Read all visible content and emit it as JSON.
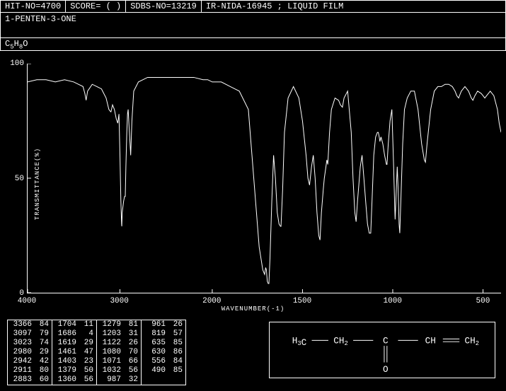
{
  "header": {
    "hit_no": "HIT-NO=4700",
    "score": "SCORE=  (  )",
    "sdbs_no": "SDBS-NO=13219",
    "source": "IR-NIDA-16945 ; LIQUID FILM"
  },
  "compound_name": "1-PENTEN-3-ONE",
  "formula_html": "C<sub>5</sub>H<sub>8</sub>O",
  "chart": {
    "type": "line",
    "title": "",
    "ylabel": "TRANSMITTANCE(%)",
    "xlabel": "WAVENUMBER(-1)",
    "ylim": [
      0,
      100
    ],
    "yticks": [
      0,
      50,
      100
    ],
    "xlim": [
      4000,
      400
    ],
    "xticks": [
      4000,
      3000,
      2000,
      1500,
      1000,
      500
    ],
    "background_color": "#000000",
    "line_color": "#ffffff",
    "axis_color": "#ffffff",
    "line_width": 1,
    "x_scale_breakpoint": 2000,
    "x_scale_left_fraction": 0.39,
    "data": [
      [
        4000,
        92
      ],
      [
        3900,
        93
      ],
      [
        3800,
        93
      ],
      [
        3700,
        92
      ],
      [
        3600,
        93
      ],
      [
        3500,
        92
      ],
      [
        3450,
        91
      ],
      [
        3400,
        90
      ],
      [
        3380,
        87
      ],
      [
        3366,
        84
      ],
      [
        3350,
        88
      ],
      [
        3300,
        91
      ],
      [
        3250,
        90
      ],
      [
        3200,
        89
      ],
      [
        3150,
        85
      ],
      [
        3120,
        80
      ],
      [
        3100,
        79
      ],
      [
        3097,
        79
      ],
      [
        3080,
        82
      ],
      [
        3060,
        80
      ],
      [
        3040,
        76
      ],
      [
        3023,
        74
      ],
      [
        3010,
        78
      ],
      [
        3000,
        60
      ],
      [
        2990,
        40
      ],
      [
        2982,
        30
      ],
      [
        2980,
        29
      ],
      [
        2975,
        35
      ],
      [
        2960,
        40
      ],
      [
        2950,
        42
      ],
      [
        2942,
        42
      ],
      [
        2935,
        55
      ],
      [
        2925,
        70
      ],
      [
        2918,
        78
      ],
      [
        2911,
        80
      ],
      [
        2900,
        72
      ],
      [
        2890,
        65
      ],
      [
        2883,
        60
      ],
      [
        2870,
        75
      ],
      [
        2850,
        88
      ],
      [
        2800,
        92
      ],
      [
        2750,
        93
      ],
      [
        2700,
        94
      ],
      [
        2600,
        94
      ],
      [
        2500,
        94
      ],
      [
        2400,
        94
      ],
      [
        2300,
        94
      ],
      [
        2200,
        94
      ],
      [
        2100,
        93
      ],
      [
        2050,
        93
      ],
      [
        2000,
        92
      ],
      [
        1950,
        92
      ],
      [
        1900,
        90
      ],
      [
        1850,
        88
      ],
      [
        1800,
        80
      ],
      [
        1780,
        60
      ],
      [
        1760,
        40
      ],
      [
        1740,
        20
      ],
      [
        1720,
        10
      ],
      [
        1710,
        8
      ],
      [
        1704,
        11
      ],
      [
        1700,
        10
      ],
      [
        1695,
        5
      ],
      [
        1690,
        4
      ],
      [
        1686,
        4
      ],
      [
        1680,
        15
      ],
      [
        1670,
        40
      ],
      [
        1660,
        60
      ],
      [
        1650,
        50
      ],
      [
        1640,
        35
      ],
      [
        1630,
        30
      ],
      [
        1622,
        29
      ],
      [
        1619,
        29
      ],
      [
        1610,
        45
      ],
      [
        1600,
        70
      ],
      [
        1580,
        85
      ],
      [
        1550,
        90
      ],
      [
        1520,
        85
      ],
      [
        1500,
        75
      ],
      [
        1480,
        60
      ],
      [
        1470,
        50
      ],
      [
        1461,
        47
      ],
      [
        1450,
        55
      ],
      [
        1440,
        60
      ],
      [
        1430,
        50
      ],
      [
        1420,
        35
      ],
      [
        1410,
        25
      ],
      [
        1403,
        23
      ],
      [
        1395,
        35
      ],
      [
        1385,
        45
      ],
      [
        1379,
        50
      ],
      [
        1370,
        55
      ],
      [
        1365,
        58
      ],
      [
        1360,
        56
      ],
      [
        1350,
        70
      ],
      [
        1340,
        80
      ],
      [
        1320,
        85
      ],
      [
        1300,
        84
      ],
      [
        1290,
        82
      ],
      [
        1279,
        81
      ],
      [
        1270,
        85
      ],
      [
        1250,
        88
      ],
      [
        1230,
        70
      ],
      [
        1220,
        50
      ],
      [
        1210,
        35
      ],
      [
        1203,
        31
      ],
      [
        1195,
        40
      ],
      [
        1180,
        55
      ],
      [
        1170,
        60
      ],
      [
        1160,
        50
      ],
      [
        1150,
        40
      ],
      [
        1140,
        30
      ],
      [
        1130,
        26
      ],
      [
        1122,
        26
      ],
      [
        1115,
        40
      ],
      [
        1105,
        60
      ],
      [
        1095,
        68
      ],
      [
        1085,
        70
      ],
      [
        1080,
        70
      ],
      [
        1075,
        68
      ],
      [
        1071,
        66
      ],
      [
        1065,
        68
      ],
      [
        1055,
        65
      ],
      [
        1045,
        60
      ],
      [
        1035,
        56
      ],
      [
        1032,
        56
      ],
      [
        1025,
        65
      ],
      [
        1015,
        75
      ],
      [
        1005,
        80
      ],
      [
        995,
        55
      ],
      [
        990,
        40
      ],
      [
        987,
        32
      ],
      [
        980,
        45
      ],
      [
        975,
        55
      ],
      [
        970,
        45
      ],
      [
        965,
        30
      ],
      [
        961,
        26
      ],
      [
        955,
        40
      ],
      [
        945,
        65
      ],
      [
        935,
        80
      ],
      [
        920,
        85
      ],
      [
        900,
        88
      ],
      [
        880,
        88
      ],
      [
        860,
        80
      ],
      [
        840,
        65
      ],
      [
        825,
        58
      ],
      [
        819,
        57
      ],
      [
        810,
        65
      ],
      [
        790,
        80
      ],
      [
        770,
        88
      ],
      [
        750,
        90
      ],
      [
        730,
        90
      ],
      [
        710,
        91
      ],
      [
        690,
        91
      ],
      [
        670,
        90
      ],
      [
        655,
        88
      ],
      [
        645,
        86
      ],
      [
        635,
        85
      ],
      [
        630,
        86
      ],
      [
        620,
        88
      ],
      [
        600,
        90
      ],
      [
        580,
        88
      ],
      [
        565,
        85
      ],
      [
        556,
        84
      ],
      [
        545,
        86
      ],
      [
        530,
        88
      ],
      [
        510,
        87
      ],
      [
        500,
        86
      ],
      [
        490,
        85
      ],
      [
        480,
        86
      ],
      [
        460,
        88
      ],
      [
        440,
        86
      ],
      [
        420,
        80
      ],
      [
        410,
        74
      ],
      [
        400,
        70
      ]
    ]
  },
  "peak_table": {
    "columns_per_group": 2,
    "groups": [
      [
        [
          3366,
          84
        ],
        [
          3097,
          79
        ],
        [
          3023,
          74
        ],
        [
          2980,
          29
        ],
        [
          2942,
          42
        ],
        [
          2911,
          80
        ],
        [
          2883,
          60
        ]
      ],
      [
        [
          1704,
          11
        ],
        [
          1686,
          4
        ],
        [
          1619,
          29
        ],
        [
          1461,
          47
        ],
        [
          1403,
          23
        ],
        [
          1379,
          50
        ],
        [
          1360,
          56
        ]
      ],
      [
        [
          1279,
          81
        ],
        [
          1203,
          31
        ],
        [
          1122,
          26
        ],
        [
          1080,
          70
        ],
        [
          1071,
          66
        ],
        [
          1032,
          56
        ],
        [
          987,
          32
        ]
      ],
      [
        [
          961,
          26
        ],
        [
          819,
          57
        ],
        [
          635,
          85
        ],
        [
          630,
          86
        ],
        [
          556,
          84
        ],
        [
          490,
          85
        ]
      ]
    ],
    "border_color": "#ffffff",
    "font_size": 11
  },
  "structure": {
    "groups": [
      "H₃C",
      "CH₂",
      "C",
      "CH",
      "CH₂"
    ],
    "oxygen": "O",
    "bonds": [
      "single",
      "single",
      "single",
      "double"
    ],
    "carbonyl_double": true,
    "line_color": "#ffffff",
    "text_color": "#ffffff"
  }
}
